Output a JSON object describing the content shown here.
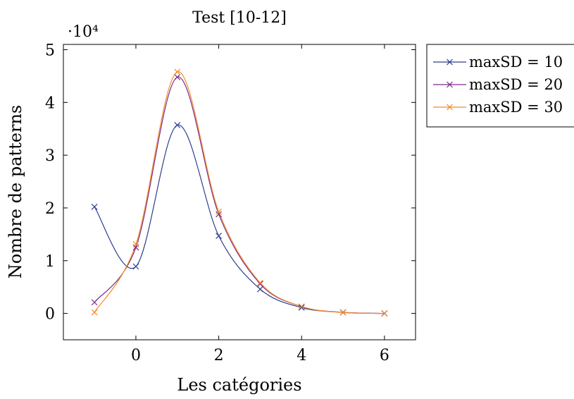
{
  "chart_data": {
    "type": "line",
    "title": "Test [10-12]",
    "xlabel": "Les catégories",
    "ylabel": "Nombre de patterns",
    "y_scale_label": "·10⁴",
    "xlim": [
      -1.75,
      6.75
    ],
    "ylim": [
      -0.5,
      5.1
    ],
    "x_ticks": [
      0,
      2,
      4,
      6
    ],
    "y_ticks": [
      0,
      1,
      2,
      3,
      4,
      5
    ],
    "x": [
      -1,
      0,
      1,
      2,
      3,
      4,
      5,
      6
    ],
    "series": [
      {
        "name": "maxSD = 10",
        "color": "#2c3e8f",
        "values": [
          2.02,
          0.89,
          3.57,
          1.47,
          0.46,
          0.11,
          0.02,
          0.0
        ]
      },
      {
        "name": "maxSD = 20",
        "color": "#7e2a8a",
        "values": [
          0.21,
          1.25,
          4.48,
          1.88,
          0.56,
          0.13,
          0.02,
          0.0
        ]
      },
      {
        "name": "maxSD = 30",
        "color": "#f28c28",
        "values": [
          0.02,
          1.31,
          4.58,
          1.93,
          0.58,
          0.13,
          0.02,
          0.0
        ]
      }
    ],
    "legend": {
      "placement": "outside-right-top"
    },
    "grid": false,
    "markers": "x"
  }
}
